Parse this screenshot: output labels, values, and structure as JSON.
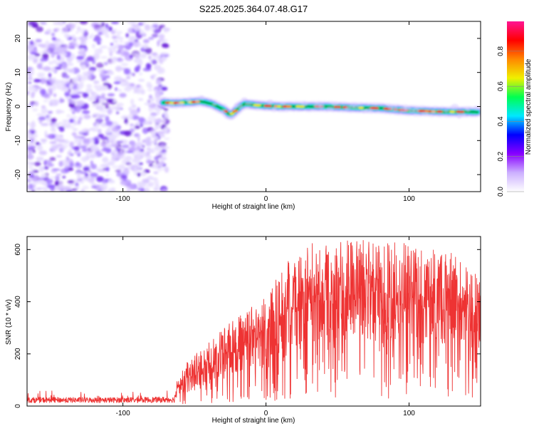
{
  "title": "S225.2025.364.07.48.G17",
  "chart_data": [
    {
      "type": "heatmap",
      "name": "spectrogram",
      "xlabel": "Height of straight line (km)",
      "ylabel": "Frequency (Hz)",
      "xlim": [
        -167,
        150
      ],
      "ylim": [
        -25,
        25
      ],
      "xticks": [
        -100,
        0,
        100
      ],
      "yticks": [
        -20,
        -10,
        0,
        10,
        20
      ],
      "noise_region_x": [
        -167,
        -71
      ],
      "ridge": {
        "description": "dominant frequency ridge",
        "x": [
          -72,
          -65,
          -55,
          -45,
          -38,
          -30,
          -25,
          -22,
          -18,
          -15,
          -10,
          -5,
          0,
          10,
          20,
          40,
          60,
          80,
          100,
          120,
          148
        ],
        "y": [
          1.2,
          1.0,
          1.2,
          1.5,
          0.8,
          -0.8,
          -2.5,
          -1.5,
          0,
          0.8,
          0.6,
          0.3,
          0.2,
          0,
          0,
          0,
          -0.3,
          -0.5,
          -1.2,
          -1.5,
          -1.6
        ]
      },
      "colorbar": {
        "label": "Normalized spectral amplitude",
        "range": [
          0,
          0.97
        ],
        "ticks": [
          "0.0",
          "0.2",
          "0.4",
          "0.6",
          "0.8"
        ],
        "tick_values": [
          0,
          0.2,
          0.4,
          0.6,
          0.8
        ],
        "colors": [
          "#ffffff",
          "#ccb0ff",
          "#8800ff",
          "#0000ff",
          "#00e8ff",
          "#00ff50",
          "#f0f000",
          "#ff8800",
          "#ff0000",
          "#ff1493"
        ]
      }
    },
    {
      "type": "line",
      "name": "snr",
      "xlabel": "Height of straight line (km)",
      "ylabel": "SNR (10 * v/v)",
      "xlim": [
        -167,
        150
      ],
      "ylim": [
        0,
        650
      ],
      "xticks": [
        -100,
        0,
        100
      ],
      "yticks": [
        0,
        200,
        400,
        600
      ],
      "color": "#ee3333",
      "envelope": {
        "x": [
          -167,
          -100,
          -64,
          -62,
          -55,
          -45,
          -35,
          -25,
          -15,
          -5,
          5,
          15,
          30,
          50,
          70,
          90,
          110,
          130,
          140,
          150
        ],
        "y": [
          28,
          28,
          30,
          90,
          150,
          190,
          240,
          280,
          310,
          350,
          410,
          480,
          545,
          555,
          555,
          548,
          530,
          515,
          470,
          440
        ]
      }
    }
  ]
}
